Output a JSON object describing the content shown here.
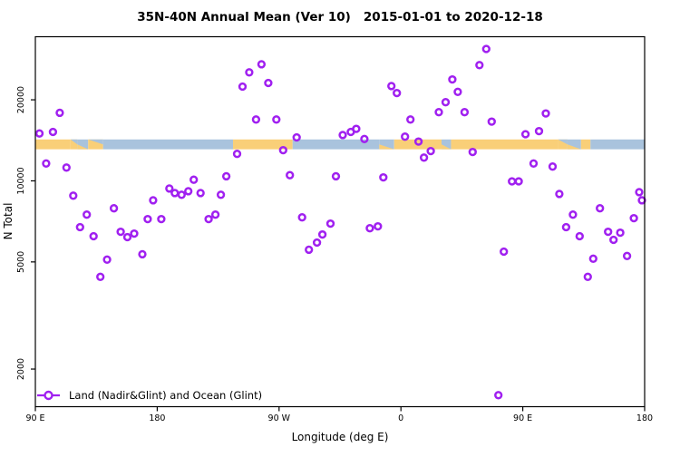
{
  "title": "35N-40N Annual Mean (Ver 10)   2015-01-01 to 2020-12-18",
  "colors": {
    "point": "#A020F0",
    "land": "#F9CF78",
    "ocean": "#A9C3DD",
    "axis": "#000000"
  },
  "legend": {
    "label": "Land (Nadir&Glint) and Ocean (Glint)"
  },
  "chart_data": {
    "type": "scatter",
    "title": "35N-40N Annual Mean (Ver 10)   2015-01-01 to 2020-12-18",
    "xlabel": "Longitude (deg E)",
    "ylabel": "N Total",
    "legend_entries": [
      "Land (Nadir&Glint) and Ocean (Glint)"
    ],
    "x_axis": {
      "note": "longitude axis starts at 90E and wraps eastward: 90E,180,90W,0,90E,180",
      "range": [
        90,
        540
      ],
      "ticks": [
        {
          "lon": 90,
          "label": "90 E"
        },
        {
          "lon": 180,
          "label": "180"
        },
        {
          "lon": 270,
          "label": "90 W"
        },
        {
          "lon": 360,
          "label": "0"
        },
        {
          "lon": 450,
          "label": "90 E"
        },
        {
          "lon": 540,
          "label": "180"
        }
      ]
    },
    "y_axis": {
      "scale": "log",
      "range": [
        1450,
        34300
      ],
      "ticks": [
        {
          "value": 20000,
          "label": "20000"
        },
        {
          "value": 10000,
          "label": "10000"
        },
        {
          "value": 5000,
          "label": "5000"
        },
        {
          "value": 2000,
          "label": "2000"
        }
      ]
    },
    "map_band": {
      "n_range": [
        13100,
        14250
      ],
      "segments": [
        {
          "from": 90,
          "to": 116,
          "type": "land"
        },
        {
          "from": 116,
          "to": 121,
          "type": "mix_land"
        },
        {
          "from": 121,
          "to": 129,
          "type": "mix_ocean"
        },
        {
          "from": 129,
          "to": 140,
          "type": "mix_land"
        },
        {
          "from": 140,
          "to": 236,
          "type": "ocean"
        },
        {
          "from": 236,
          "to": 280,
          "type": "land"
        },
        {
          "from": 280,
          "to": 344,
          "type": "ocean"
        },
        {
          "from": 344,
          "to": 355,
          "type": "mix_ocean"
        },
        {
          "from": 355,
          "to": 390,
          "type": "land"
        },
        {
          "from": 390,
          "to": 397,
          "type": "mix_ocean"
        },
        {
          "from": 397,
          "to": 476,
          "type": "land"
        },
        {
          "from": 476,
          "to": 483,
          "type": "mix_land"
        },
        {
          "from": 483,
          "to": 493,
          "type": "mix_ocean"
        },
        {
          "from": 493,
          "to": 500,
          "type": "land"
        },
        {
          "from": 500,
          "to": 540,
          "type": "ocean"
        }
      ]
    },
    "points": [
      [
        108,
        17900
      ],
      [
        93,
        15000
      ],
      [
        103,
        15200
      ],
      [
        98,
        11600
      ],
      [
        113,
        11200
      ],
      [
        118,
        8810
      ],
      [
        128,
        7490
      ],
      [
        123,
        6730
      ],
      [
        133,
        6230
      ],
      [
        148,
        7910
      ],
      [
        153,
        6470
      ],
      [
        158,
        6180
      ],
      [
        163,
        6370
      ],
      [
        173,
        7210
      ],
      [
        183,
        7210
      ],
      [
        177,
        8470
      ],
      [
        169,
        5340
      ],
      [
        143,
        5100
      ],
      [
        138,
        4400
      ],
      [
        189,
        9370
      ],
      [
        193,
        9010
      ],
      [
        198,
        8880
      ],
      [
        203,
        9150
      ],
      [
        207,
        10100
      ],
      [
        212,
        9010
      ],
      [
        227,
        8880
      ],
      [
        231,
        10400
      ],
      [
        218,
        7210
      ],
      [
        223,
        7490
      ],
      [
        239,
        12600
      ],
      [
        243,
        22400
      ],
      [
        248,
        25300
      ],
      [
        253,
        16900
      ],
      [
        257,
        27100
      ],
      [
        262,
        23100
      ],
      [
        268,
        16900
      ],
      [
        273,
        13000
      ],
      [
        278,
        10500
      ],
      [
        283,
        14500
      ],
      [
        287,
        7320
      ],
      [
        292,
        5550
      ],
      [
        298,
        5900
      ],
      [
        302,
        6320
      ],
      [
        308,
        6940
      ],
      [
        312,
        10400
      ],
      [
        317,
        14800
      ],
      [
        323,
        15200
      ],
      [
        327,
        15600
      ],
      [
        333,
        14300
      ],
      [
        337,
        6670
      ],
      [
        343,
        6780
      ],
      [
        347,
        10300
      ],
      [
        353,
        22500
      ],
      [
        357,
        21200
      ],
      [
        363,
        14600
      ],
      [
        367,
        16900
      ],
      [
        373,
        14000
      ],
      [
        377,
        12200
      ],
      [
        382,
        12900
      ],
      [
        388,
        18000
      ],
      [
        393,
        19600
      ],
      [
        398,
        23800
      ],
      [
        402,
        21400
      ],
      [
        407,
        18000
      ],
      [
        413,
        12800
      ],
      [
        418,
        26900
      ],
      [
        423,
        30900
      ],
      [
        427,
        16600
      ],
      [
        432,
        1600
      ],
      [
        436,
        5460
      ],
      [
        442,
        9960
      ],
      [
        447,
        9960
      ],
      [
        452,
        14900
      ],
      [
        458,
        11600
      ],
      [
        462,
        15300
      ],
      [
        467,
        17800
      ],
      [
        472,
        11300
      ],
      [
        477,
        8940
      ],
      [
        482,
        6730
      ],
      [
        487,
        7490
      ],
      [
        492,
        6230
      ],
      [
        498,
        4400
      ],
      [
        502,
        5140
      ],
      [
        507,
        7910
      ],
      [
        513,
        6470
      ],
      [
        517,
        6040
      ],
      [
        522,
        6420
      ],
      [
        527,
        5260
      ],
      [
        532,
        7270
      ],
      [
        536,
        9080
      ],
      [
        538,
        8470
      ]
    ]
  }
}
